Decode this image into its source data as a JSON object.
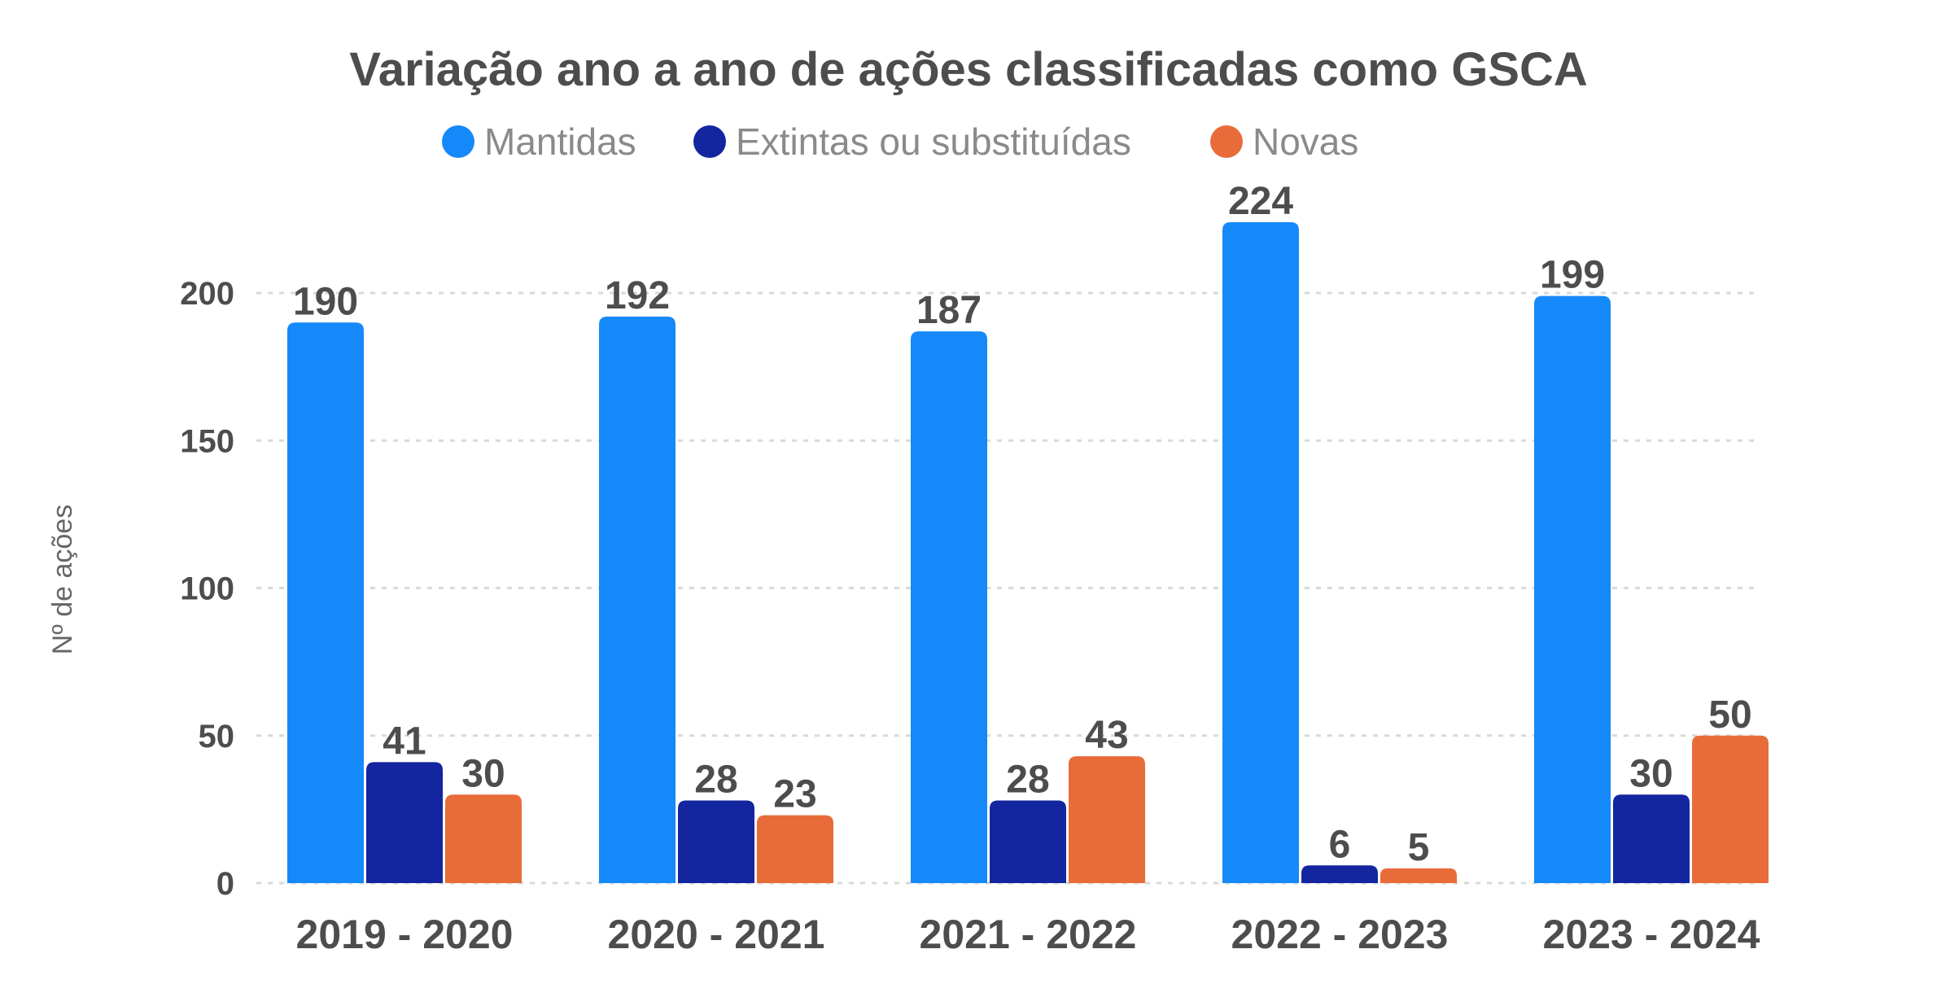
{
  "chart_data": {
    "type": "bar",
    "title": "Variação ano a ano de ações classificadas como GSCA",
    "xlabel": "",
    "ylabel": "Nº de ações",
    "ylim": [
      0,
      240
    ],
    "yticks": [
      "0",
      "50",
      "100",
      "150",
      "200"
    ],
    "categories": [
      "2019 - 2020",
      "2020 - 2021",
      "2021 - 2022",
      "2022 - 2023",
      "2023 - 2024"
    ],
    "series": [
      {
        "name": "Mantidas",
        "color": "#1589f9",
        "values": [
          190,
          192,
          187,
          224,
          199
        ]
      },
      {
        "name": "Extintas ou substituídas",
        "color": "#13259f",
        "values": [
          41,
          28,
          28,
          6,
          30
        ]
      },
      {
        "name": "Novas",
        "color": "#e86c39",
        "values": [
          30,
          23,
          43,
          5,
          50
        ]
      }
    ],
    "legend_position": "top"
  }
}
